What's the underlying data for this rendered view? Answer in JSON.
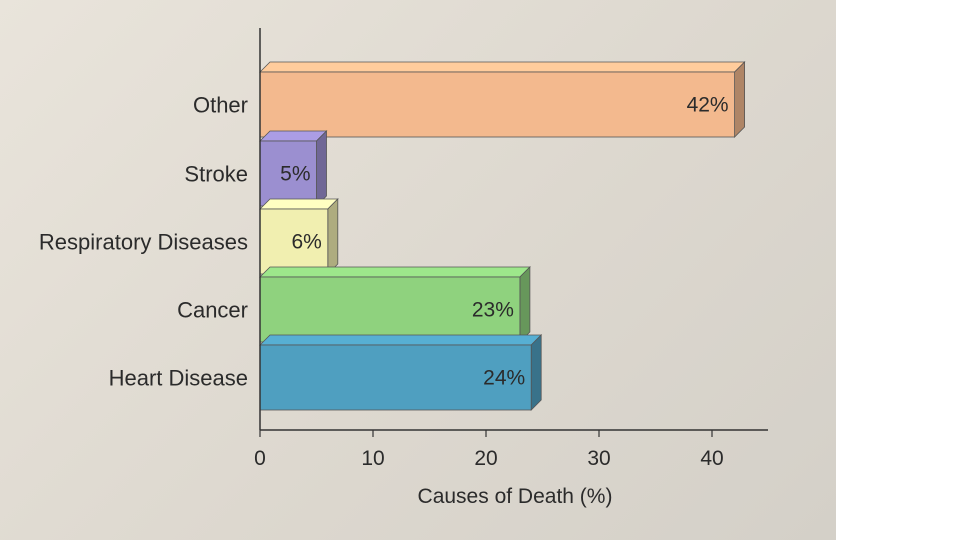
{
  "chart_data": {
    "type": "bar",
    "orientation": "horizontal",
    "three_d": true,
    "categories": [
      "Heart Disease",
      "Cancer",
      "Respiratory Diseases",
      "Stroke",
      "Other"
    ],
    "values": [
      24,
      23,
      6,
      5,
      42
    ],
    "value_labels": [
      "24%",
      "23%",
      "6%",
      "5%",
      "42%"
    ],
    "colors": [
      "#4f9fc0",
      "#8fd27e",
      "#f1efb0",
      "#9b8fd0",
      "#f3b98e"
    ],
    "xlabel": "Causes of Death (%)",
    "xlim": [
      0,
      45
    ],
    "xticks": [
      0,
      10,
      20,
      30,
      40
    ],
    "grid": false
  }
}
